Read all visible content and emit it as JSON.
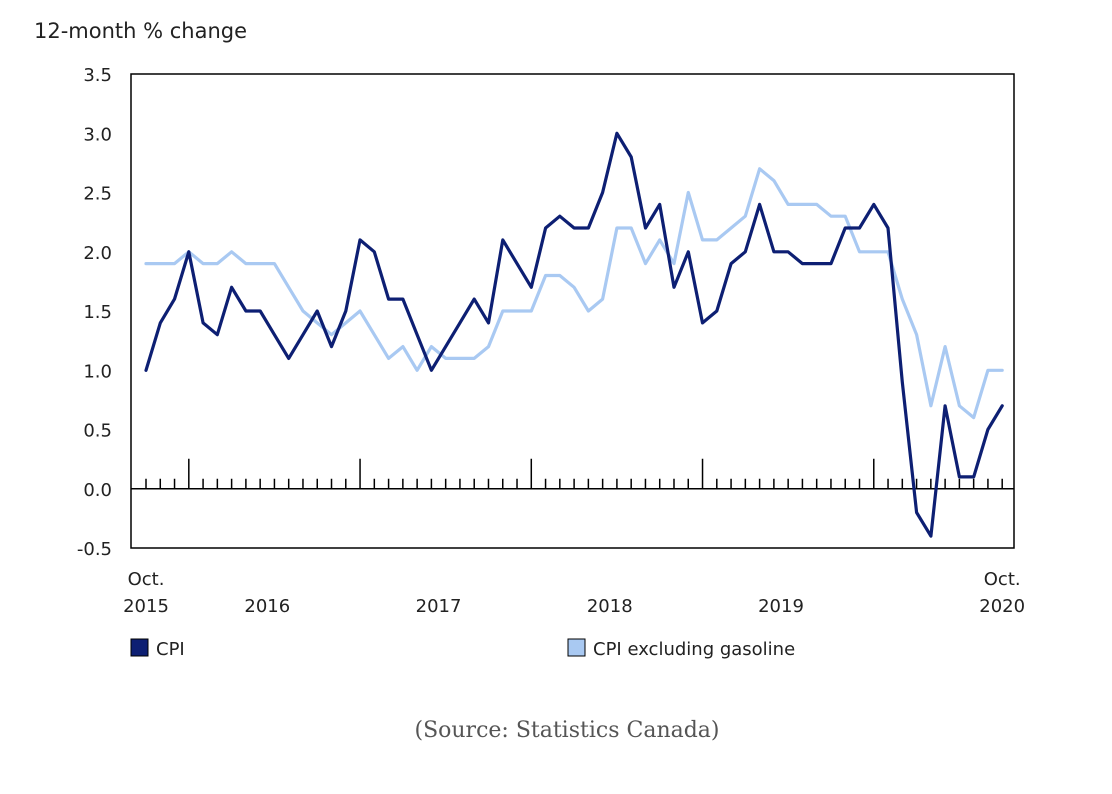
{
  "chart_data": {
    "type": "line",
    "ylabel": "12-month % change",
    "ylim": [
      -0.5,
      3.5
    ],
    "y_ticks": [
      "-0.5",
      "0.0",
      "0.5",
      "1.0",
      "1.5",
      "2.0",
      "2.5",
      "3.0",
      "3.5"
    ],
    "x_start_label": [
      "Oct.",
      "2015"
    ],
    "x_end_label": [
      "Oct.",
      "2020"
    ],
    "x_year_labels": [
      "2016",
      "2017",
      "2018",
      "2019"
    ],
    "x": [
      "2015-10",
      "2015-11",
      "2015-12",
      "2016-01",
      "2016-02",
      "2016-03",
      "2016-04",
      "2016-05",
      "2016-06",
      "2016-07",
      "2016-08",
      "2016-09",
      "2016-10",
      "2016-11",
      "2016-12",
      "2017-01",
      "2017-02",
      "2017-03",
      "2017-04",
      "2017-05",
      "2017-06",
      "2017-07",
      "2017-08",
      "2017-09",
      "2017-10",
      "2017-11",
      "2017-12",
      "2018-01",
      "2018-02",
      "2018-03",
      "2018-04",
      "2018-05",
      "2018-06",
      "2018-07",
      "2018-08",
      "2018-09",
      "2018-10",
      "2018-11",
      "2018-12",
      "2019-01",
      "2019-02",
      "2019-03",
      "2019-04",
      "2019-05",
      "2019-06",
      "2019-07",
      "2019-08",
      "2019-09",
      "2019-10",
      "2019-11",
      "2019-12",
      "2020-01",
      "2020-02",
      "2020-03",
      "2020-04",
      "2020-05",
      "2020-06",
      "2020-07",
      "2020-08",
      "2020-09",
      "2020-10"
    ],
    "series": [
      {
        "name": "CPI",
        "color": "#0d1f73",
        "values": [
          1.0,
          1.4,
          1.6,
          2.0,
          1.4,
          1.3,
          1.7,
          1.5,
          1.5,
          1.3,
          1.1,
          1.3,
          1.5,
          1.2,
          1.5,
          2.1,
          2.0,
          1.6,
          1.6,
          1.3,
          1.0,
          1.2,
          1.4,
          1.6,
          1.4,
          2.1,
          1.9,
          1.7,
          2.2,
          2.3,
          2.2,
          2.2,
          2.5,
          3.0,
          2.8,
          2.2,
          2.4,
          1.7,
          2.0,
          1.4,
          1.5,
          1.9,
          2.0,
          2.4,
          2.0,
          2.0,
          1.9,
          1.9,
          1.9,
          2.2,
          2.2,
          2.4,
          2.2,
          0.9,
          -0.2,
          -0.4,
          0.7,
          0.1,
          0.1,
          0.5,
          0.7
        ]
      },
      {
        "name": "CPI excluding gasoline",
        "color": "#a9c9f2",
        "values": [
          1.9,
          1.9,
          1.9,
          2.0,
          1.9,
          1.9,
          2.0,
          1.9,
          1.9,
          1.9,
          1.7,
          1.5,
          1.4,
          1.3,
          1.4,
          1.5,
          1.3,
          1.1,
          1.2,
          1.0,
          1.2,
          1.1,
          1.1,
          1.1,
          1.2,
          1.5,
          1.5,
          1.5,
          1.8,
          1.8,
          1.7,
          1.5,
          1.6,
          2.2,
          2.2,
          1.9,
          2.1,
          1.9,
          2.5,
          2.1,
          2.1,
          2.2,
          2.3,
          2.7,
          2.6,
          2.4,
          2.4,
          2.4,
          2.3,
          2.3,
          2.0,
          2.0,
          2.0,
          1.6,
          1.3,
          0.7,
          1.2,
          0.7,
          0.6,
          1.0,
          1.0
        ]
      }
    ],
    "grid": false,
    "legend_position": "bottom"
  },
  "source": "(Source: Statistics Canada)"
}
